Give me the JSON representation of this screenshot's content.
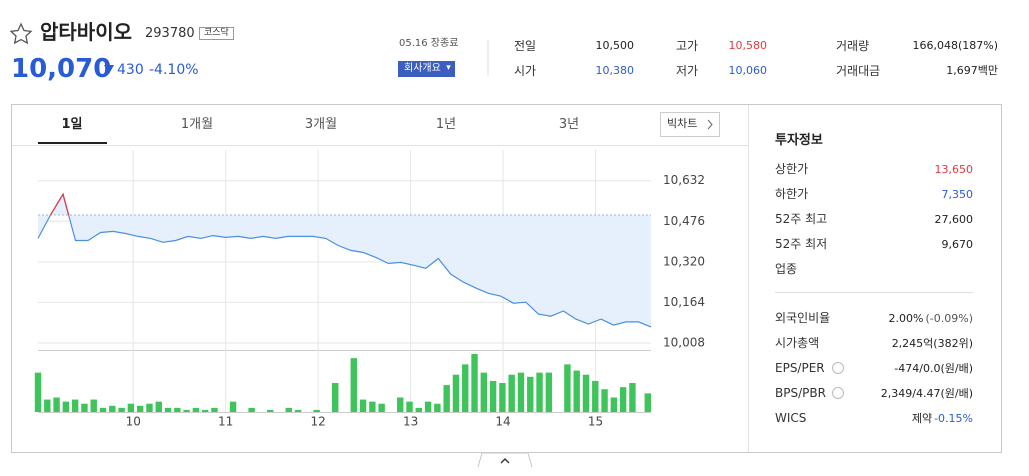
{
  "header": {
    "name": "압타바이오",
    "code": "293780",
    "market": "코스닥",
    "price": "10,070",
    "change": "430",
    "change_rate": "-4.10%",
    "date": "05.16 장종료",
    "company_button": "회사개요"
  },
  "quote": [
    {
      "label": "전일",
      "value": "10,500",
      "color": "#222222"
    },
    {
      "label": "시가",
      "value": "10,380",
      "color": "#2a5bd7"
    },
    {
      "label": "고가",
      "value": "10,580",
      "color": "#e8373f"
    },
    {
      "label": "저가",
      "value": "10,060",
      "color": "#2a5bd7"
    },
    {
      "label": "거래량",
      "value": "166,048(187%)",
      "color": "#222222"
    },
    {
      "label": "거래대금",
      "value": "1,697백만",
      "color": "#222222"
    }
  ],
  "tabs": [
    "1일",
    "1개월",
    "3개월",
    "1년",
    "3년"
  ],
  "big_chart": "빅차트",
  "chart_data": {
    "type": "line",
    "color": "#4a8fe0",
    "fill_color": "#e6f0fc",
    "up_color": "#e8373f",
    "reference": 10500,
    "values": [
      10410,
      10500,
      10580,
      10402,
      10402,
      10433,
      10437,
      10429,
      10418,
      10410,
      10395,
      10402,
      10418,
      10410,
      10421,
      10414,
      10418,
      10410,
      10418,
      10410,
      10418,
      10418,
      10418,
      10410,
      10383,
      10364,
      10356,
      10337,
      10314,
      10318,
      10307,
      10295,
      10333,
      10272,
      10242,
      10219,
      10199,
      10188,
      10161,
      10165,
      10119,
      10111,
      10131,
      10100,
      10081,
      10100,
      10077,
      10089,
      10089,
      10070
    ],
    "volume": {
      "color": "#3ec45a",
      "values": [
        38,
        12,
        14,
        10,
        12,
        8,
        12,
        4,
        6,
        4,
        8,
        6,
        8,
        10,
        4,
        4,
        2,
        4,
        2,
        4,
        0,
        10,
        0,
        4,
        0,
        2,
        0,
        4,
        2,
        0,
        2,
        0,
        28,
        0,
        52,
        12,
        10,
        8,
        0,
        14,
        10,
        4,
        10,
        8,
        26,
        36,
        46,
        56,
        38,
        30,
        28,
        36,
        38,
        34,
        38,
        38,
        0,
        46,
        40,
        36,
        30,
        22,
        14,
        24,
        28,
        0,
        18
      ]
    },
    "ylim": [
      10008,
      10750
    ],
    "yticks": [
      {
        "value": 10632,
        "label": "10,632"
      },
      {
        "value": 10476,
        "label": "10,476"
      },
      {
        "value": 10320,
        "label": "10,320"
      },
      {
        "value": 10164,
        "label": "10,164"
      },
      {
        "value": 10008,
        "label": "10,008"
      }
    ],
    "xlim": [
      8.97,
      15.6
    ],
    "xticks": [
      10,
      11,
      12,
      13,
      14,
      15
    ],
    "grid": true
  },
  "invest": {
    "title": "투자정보",
    "rows": [
      {
        "label": "상한가",
        "value": "13,650",
        "color": "#e8373f"
      },
      {
        "label": "하한가",
        "value": "7,350",
        "color": "#2a5bd7"
      },
      {
        "label": "52주 최고",
        "value": "27,600",
        "color": "#222222"
      },
      {
        "label": "52주 최저",
        "value": "9,670",
        "color": "#222222"
      },
      {
        "label": "업종"
      }
    ],
    "rows2": [
      {
        "label": "외국인비율",
        "value": "2.00%",
        "sub": "(-0.09%)"
      },
      {
        "label": "시가총액",
        "value": "2,245억(382위)"
      },
      {
        "label": "EPS/PER",
        "value": "-474/0.0(원/배)",
        "help": true
      },
      {
        "label": "BPS/PBR",
        "value": "2,349/4.47(원/배)",
        "help": true
      },
      {
        "label": "WICS",
        "value": "제약",
        "sub": "-0.15%",
        "sub_color": "#2a5bd7"
      }
    ]
  }
}
